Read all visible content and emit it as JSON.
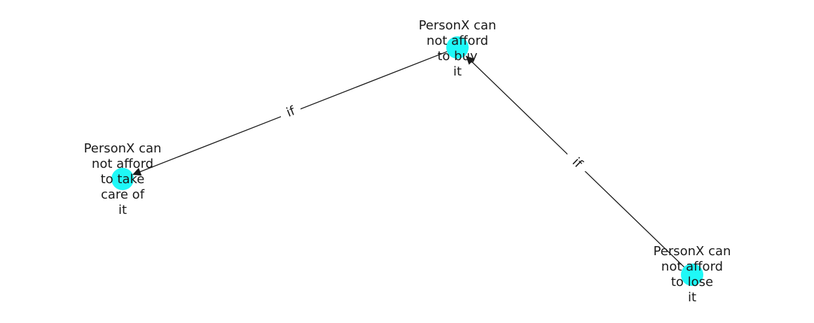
{
  "colors": {
    "node_fill": "#1ff8f7",
    "edge": "#1a1a1a",
    "text": "#1a1a1a",
    "background": "#ffffff"
  },
  "graph": {
    "nodes": [
      {
        "id": "buy",
        "lines": [
          "PersonX can",
          "not afford",
          "to buy",
          "it"
        ]
      },
      {
        "id": "take-care",
        "lines": [
          "PersonX can",
          "not afford",
          "to take",
          "care of",
          "it"
        ]
      },
      {
        "id": "lose",
        "lines": [
          "PersonX can",
          "not afford",
          "to lose",
          "it"
        ]
      }
    ],
    "edges": [
      {
        "id": "buy-to-take-care",
        "from": "buy",
        "to": "take-care",
        "label": "if"
      },
      {
        "id": "lose-to-buy",
        "from": "lose",
        "to": "buy",
        "label": "if"
      }
    ]
  }
}
